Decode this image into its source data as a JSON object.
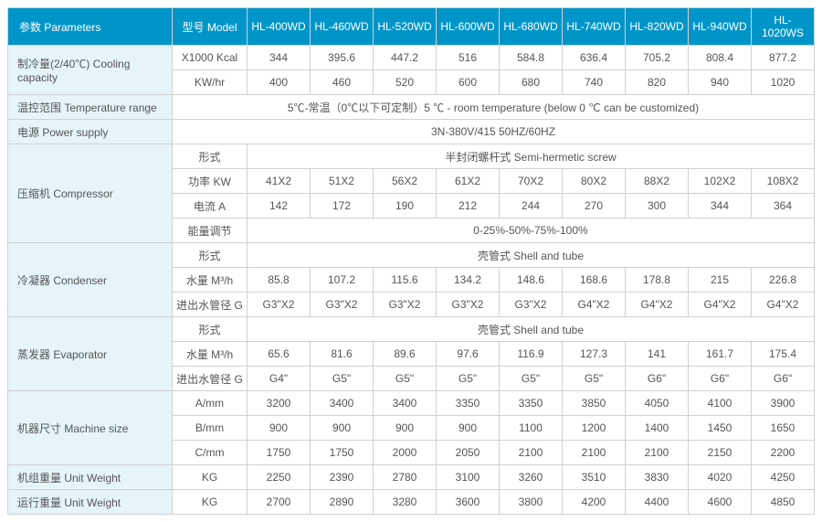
{
  "header": {
    "param_label": "参数 Parameters",
    "model_label": "型号 Model",
    "models": [
      "HL-400WD",
      "HL-460WD",
      "HL-520WD",
      "HL-600WD",
      "HL-680WD",
      "HL-740WD",
      "HL-820WD",
      "HL-940WD",
      "HL-1020WS"
    ]
  },
  "rows": {
    "cooling": {
      "label": "制冷量(2/40℃) Cooling capacity",
      "sub1": "X1000 Kcal",
      "v1": [
        "344",
        "395.6",
        "447.2",
        "516",
        "584.8",
        "636.4",
        "705.2",
        "808.4",
        "877.2"
      ],
      "sub2": "KW/hr",
      "v2": [
        "400",
        "460",
        "520",
        "600",
        "680",
        "740",
        "820",
        "940",
        "1020"
      ]
    },
    "temp": {
      "label": "温控范围 Temperature range",
      "value": "5℃-常温（0℃以下可定制）5 ℃ - room temperature (below 0 ℃ can be customized)"
    },
    "power": {
      "label": "电源 Power supply",
      "value": "3N-380V/415    50HZ/60HZ"
    },
    "comp": {
      "label": "压缩机 Compressor",
      "sub1": "形式",
      "span1": "半封闭螺杆式 Semi-hermetic screw",
      "sub2": "功率 KW",
      "v2": [
        "41X2",
        "51X2",
        "56X2",
        "61X2",
        "70X2",
        "80X2",
        "88X2",
        "102X2",
        "108X2"
      ],
      "sub3": "电流 A",
      "v3": [
        "142",
        "172",
        "190",
        "212",
        "244",
        "270",
        "300",
        "344",
        "364"
      ],
      "sub4": "能量调节",
      "span4": "0-25%-50%-75%-100%"
    },
    "cond": {
      "label": "冷凝器 Condenser",
      "sub1": "形式",
      "span1": "壳管式 Shell and tube",
      "sub2": "水量 M³/h",
      "v2": [
        "85.8",
        "107.2",
        "115.6",
        "134.2",
        "148.6",
        "168.6",
        "178.8",
        "215",
        "226.8"
      ],
      "sub3": "进出水管径 G",
      "v3": [
        "G3\"X2",
        "G3\"X2",
        "G3\"X2",
        "G3\"X2",
        "G3\"X2",
        "G4\"X2",
        "G4\"X2",
        "G4\"X2",
        "G4\"X2"
      ]
    },
    "evap": {
      "label": "蒸发器 Evaporator",
      "sub1": "形式",
      "span1": "壳管式 Shell and tube",
      "sub2": "水量 M³/h",
      "v2": [
        "65.6",
        "81.6",
        "89.6",
        "97.6",
        "116.9",
        "127.3",
        "141",
        "161.7",
        "175.4"
      ],
      "sub3": "进出水管径 G",
      "v3": [
        "G4\"",
        "G5\"",
        "G5\"",
        "G5\"",
        "G5\"",
        "G5\"",
        "G6\"",
        "G6\"",
        "G6\""
      ]
    },
    "size": {
      "label": "机器尺寸 Machine size",
      "sub1": "A/mm",
      "v1": [
        "3200",
        "3400",
        "3400",
        "3350",
        "3350",
        "3850",
        "4050",
        "4100",
        "3900"
      ],
      "sub2": "B/mm",
      "v2": [
        "900",
        "900",
        "900",
        "900",
        "1100",
        "1200",
        "1400",
        "1450",
        "1650"
      ],
      "sub3": "C/mm",
      "v3": [
        "1750",
        "1750",
        "2000",
        "2050",
        "2100",
        "2100",
        "2100",
        "2150",
        "2200"
      ]
    },
    "unitw": {
      "label": "机组重量 Unit Weight",
      "sub": "KG",
      "v": [
        "2250",
        "2390",
        "2780",
        "3100",
        "3260",
        "3510",
        "3830",
        "4020",
        "4250"
      ]
    },
    "runw": {
      "label": "运行重量 Unit Weight",
      "sub": "KG",
      "v": [
        "2700",
        "2890",
        "3280",
        "3600",
        "3800",
        "4200",
        "4400",
        "4600",
        "4850"
      ]
    }
  },
  "colors": {
    "header_bg": "#0095c9",
    "rowlabel_bg": "#e5f4f9",
    "border": "#d0d0d0",
    "text": "#555555",
    "header_text": "#ffffff"
  }
}
